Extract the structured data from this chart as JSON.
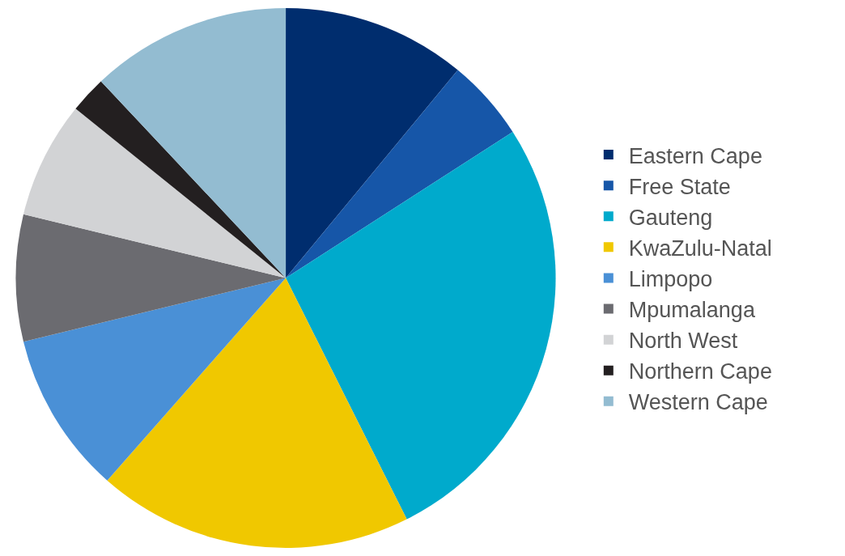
{
  "chart_data": {
    "type": "pie",
    "categories": [
      "Eastern Cape",
      "Free State",
      "Gauteng",
      "KwaZulu-Natal",
      "Limpopo",
      "Mpumalanga",
      "North West",
      "Northern Cape",
      "Western Cape"
    ],
    "values": [
      11.0,
      4.9,
      26.7,
      18.9,
      9.7,
      7.6,
      7.0,
      2.2,
      12.0
    ],
    "colors": [
      "#002d6e",
      "#1656a8",
      "#00aacc",
      "#f0c800",
      "#4a90d6",
      "#6b6b70",
      "#d2d3d5",
      "#231f20",
      "#93bcd1"
    ],
    "legend": "right"
  }
}
